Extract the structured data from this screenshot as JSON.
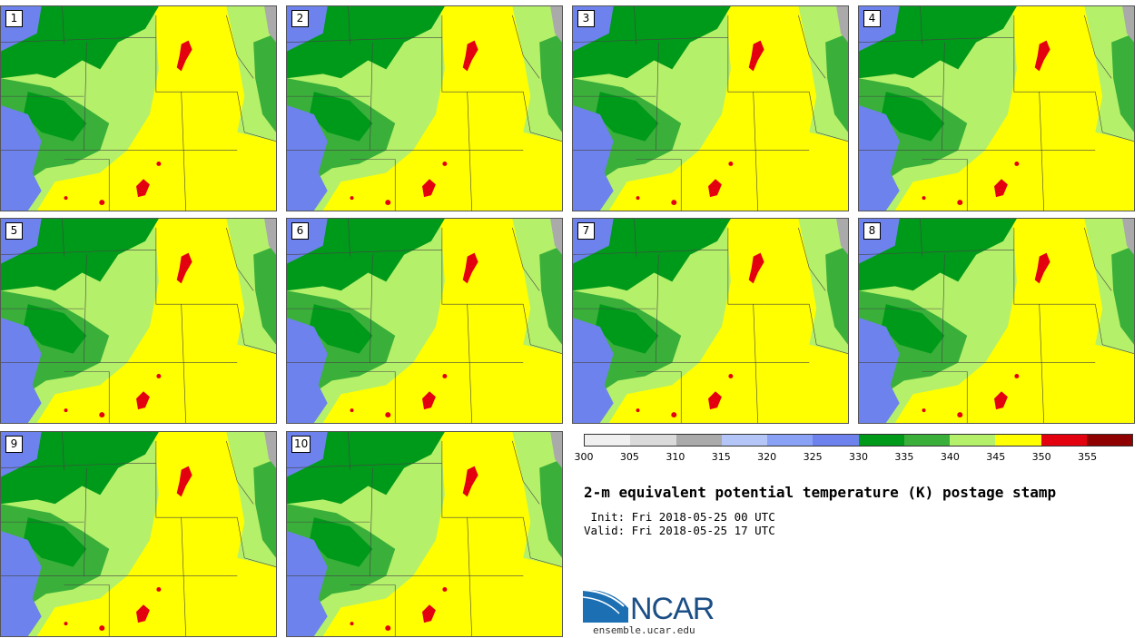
{
  "panels": [
    "1",
    "2",
    "3",
    "4",
    "5",
    "6",
    "7",
    "8",
    "9",
    "10"
  ],
  "colorbar": {
    "colors": [
      "#f0f0f0",
      "#dadada",
      "#aaaaaa",
      "#b3c6f7",
      "#8aa2f5",
      "#6d82ec",
      "#009a1a",
      "#3ab03a",
      "#b5f06a",
      "#ffff00",
      "#e3000f",
      "#8f0000"
    ],
    "ticks": [
      "300",
      "305",
      "310",
      "315",
      "320",
      "325",
      "330",
      "335",
      "340",
      "345",
      "350",
      "355"
    ]
  },
  "title": "2-m equivalent potential temperature (K) postage stamp",
  "init": " Init: Fri 2018-05-25 00 UTC",
  "valid": "Valid: Fri 2018-05-25 17 UTC",
  "logo": {
    "name": "NCAR",
    "url": "ensemble.ucar.edu"
  }
}
